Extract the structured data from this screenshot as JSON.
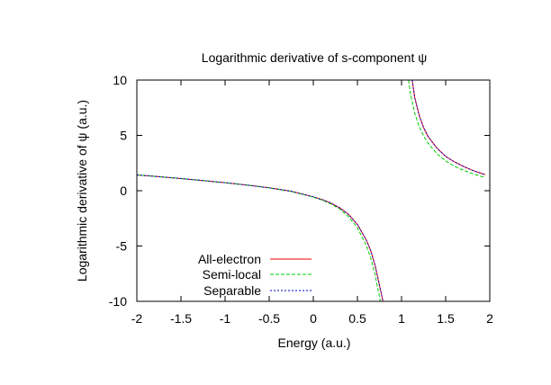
{
  "chart_data": {
    "type": "line",
    "title": "Logarithmic derivative of s-component ψ",
    "xlabel": "Energy (a.u.)",
    "ylabel": "Logarithmic derivative of ψ (a.u.)",
    "xlim": [
      -2,
      2
    ],
    "ylim": [
      -10,
      10
    ],
    "x_ticks": [
      {
        "value": -2,
        "label": "-2"
      },
      {
        "value": -1.5,
        "label": "-1.5"
      },
      {
        "value": -1,
        "label": "-1"
      },
      {
        "value": -0.5,
        "label": "-0.5"
      },
      {
        "value": 0,
        "label": "0"
      },
      {
        "value": 0.5,
        "label": "0.5"
      },
      {
        "value": 1,
        "label": "1"
      },
      {
        "value": 1.5,
        "label": "1.5"
      },
      {
        "value": 2,
        "label": "2"
      }
    ],
    "y_ticks": [
      {
        "value": -10,
        "label": "-10"
      },
      {
        "value": -5,
        "label": "-5"
      },
      {
        "value": 0,
        "label": "0"
      },
      {
        "value": 5,
        "label": "5"
      },
      {
        "value": 10,
        "label": "10"
      }
    ],
    "grid": false,
    "legend_position": "bottom-left",
    "series": [
      {
        "name": "All-electron",
        "color": "#ff0000",
        "dash": "solid",
        "segments": [
          [
            [
              -2.0,
              1.42
            ],
            [
              -1.75,
              1.27
            ],
            [
              -1.5,
              1.1
            ],
            [
              -1.25,
              0.92
            ],
            [
              -1.0,
              0.72
            ],
            [
              -0.75,
              0.5
            ],
            [
              -0.5,
              0.26
            ],
            [
              -0.25,
              -0.05
            ],
            [
              0.0,
              -0.55
            ],
            [
              0.1,
              -0.8
            ],
            [
              0.2,
              -1.12
            ],
            [
              0.3,
              -1.55
            ],
            [
              0.4,
              -2.15
            ],
            [
              0.5,
              -3.05
            ],
            [
              0.6,
              -4.45
            ],
            [
              0.65,
              -5.4
            ],
            [
              0.7,
              -6.75
            ],
            [
              0.75,
              -8.55
            ],
            [
              0.79,
              -10.0
            ]
          ],
          [
            [
              1.12,
              10.0
            ],
            [
              1.15,
              8.4
            ],
            [
              1.2,
              6.8
            ],
            [
              1.25,
              5.7
            ],
            [
              1.3,
              4.9
            ],
            [
              1.4,
              3.85
            ],
            [
              1.5,
              3.1
            ],
            [
              1.6,
              2.6
            ],
            [
              1.7,
              2.2
            ],
            [
              1.8,
              1.85
            ],
            [
              1.9,
              1.58
            ],
            [
              1.95,
              1.45
            ]
          ]
        ]
      },
      {
        "name": "Semi-local",
        "color": "#00cc00",
        "dash": "4,2",
        "segments": [
          [
            [
              -2.0,
              1.42
            ],
            [
              -1.75,
              1.27
            ],
            [
              -1.5,
              1.1
            ],
            [
              -1.25,
              0.92
            ],
            [
              -1.0,
              0.72
            ],
            [
              -0.75,
              0.5
            ],
            [
              -0.5,
              0.25
            ],
            [
              -0.25,
              -0.07
            ],
            [
              0.0,
              -0.58
            ],
            [
              0.1,
              -0.85
            ],
            [
              0.2,
              -1.2
            ],
            [
              0.3,
              -1.67
            ],
            [
              0.4,
              -2.35
            ],
            [
              0.5,
              -3.35
            ],
            [
              0.6,
              -4.95
            ],
            [
              0.65,
              -6.05
            ],
            [
              0.7,
              -7.6
            ],
            [
              0.73,
              -8.8
            ],
            [
              0.76,
              -10.0
            ]
          ],
          [
            [
              1.08,
              10.0
            ],
            [
              1.1,
              8.8
            ],
            [
              1.15,
              7.0
            ],
            [
              1.2,
              5.8
            ],
            [
              1.25,
              4.95
            ],
            [
              1.3,
              4.3
            ],
            [
              1.4,
              3.35
            ],
            [
              1.5,
              2.7
            ],
            [
              1.6,
              2.2
            ],
            [
              1.7,
              1.85
            ],
            [
              1.8,
              1.55
            ],
            [
              1.9,
              1.3
            ],
            [
              1.95,
              1.2
            ]
          ]
        ]
      },
      {
        "name": "Separable",
        "color": "#0000cc",
        "dash": "2,2",
        "segments": [
          [
            [
              -2.0,
              1.42
            ],
            [
              -1.75,
              1.27
            ],
            [
              -1.5,
              1.1
            ],
            [
              -1.25,
              0.92
            ],
            [
              -1.0,
              0.72
            ],
            [
              -0.75,
              0.5
            ],
            [
              -0.5,
              0.26
            ],
            [
              -0.25,
              -0.05
            ],
            [
              0.0,
              -0.55
            ],
            [
              0.1,
              -0.8
            ],
            [
              0.2,
              -1.12
            ],
            [
              0.3,
              -1.55
            ],
            [
              0.4,
              -2.15
            ],
            [
              0.5,
              -3.05
            ],
            [
              0.6,
              -4.45
            ],
            [
              0.65,
              -5.4
            ],
            [
              0.7,
              -6.75
            ],
            [
              0.75,
              -8.55
            ],
            [
              0.79,
              -10.0
            ]
          ],
          [
            [
              1.12,
              10.0
            ],
            [
              1.15,
              8.4
            ],
            [
              1.2,
              6.8
            ],
            [
              1.25,
              5.7
            ],
            [
              1.3,
              4.9
            ],
            [
              1.4,
              3.85
            ],
            [
              1.5,
              3.1
            ],
            [
              1.6,
              2.6
            ],
            [
              1.7,
              2.2
            ],
            [
              1.8,
              1.85
            ],
            [
              1.9,
              1.58
            ],
            [
              1.95,
              1.45
            ]
          ]
        ]
      }
    ]
  }
}
